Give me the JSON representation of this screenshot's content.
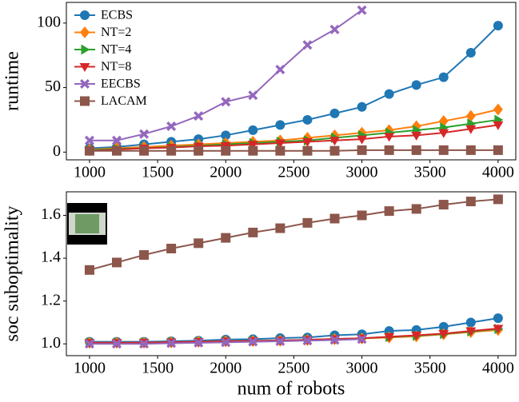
{
  "chart_data": [
    {
      "type": "line",
      "ylabel": "runtime",
      "legend": "upper left",
      "x": [
        1000,
        1200,
        1400,
        1600,
        1800,
        2000,
        2200,
        2400,
        2600,
        2800,
        3000,
        3200,
        3400,
        3600,
        3800,
        4000
      ],
      "xlim": [
        830,
        4130
      ],
      "xticks": [
        1000,
        1500,
        2000,
        2500,
        3000,
        3500,
        4000
      ],
      "ylim": [
        -6,
        116
      ],
      "yticks": [
        0,
        50,
        100
      ],
      "series": [
        {
          "name": "ECBS",
          "color": "#1f77b4",
          "marker": "circle",
          "values": [
            3,
            4,
            6,
            8,
            10,
            13,
            17,
            21,
            25,
            30,
            35,
            45,
            52,
            58,
            77,
            98
          ]
        },
        {
          "name": "NT=2",
          "color": "#ff7f0e",
          "marker": "diamond",
          "values": [
            2,
            3,
            4,
            5,
            6,
            7,
            8,
            9,
            11,
            13,
            15,
            17,
            20,
            24,
            28,
            33
          ]
        },
        {
          "name": "NT=4",
          "color": "#2ca02c",
          "marker": "triangle-right",
          "values": [
            1.5,
            2.5,
            3,
            4,
            5,
            6,
            7,
            8,
            9,
            11,
            13,
            15,
            17,
            19,
            22,
            25
          ]
        },
        {
          "name": "NT=8",
          "color": "#d62728",
          "marker": "triangle-down",
          "values": [
            1,
            2,
            3,
            3.5,
            4.5,
            5,
            6,
            7,
            8,
            9,
            10,
            12,
            13,
            15,
            18,
            21
          ]
        },
        {
          "name": "EECBS",
          "color": "#9467bd",
          "marker": "x",
          "values": [
            9,
            9,
            14,
            20,
            28,
            39,
            44,
            64,
            83,
            95,
            110,
            null,
            null,
            null,
            null,
            null
          ]
        },
        {
          "name": "LACAM",
          "color": "#8c564b",
          "marker": "square",
          "values": [
            1,
            1,
            1,
            1,
            1,
            1,
            1,
            1,
            1,
            1,
            1.5,
            1.5,
            1.5,
            1.5,
            1.5,
            1.5
          ]
        }
      ]
    },
    {
      "type": "line",
      "ylabel": "soc suboptimality",
      "xlabel": "num of robots",
      "x": [
        1000,
        1200,
        1400,
        1600,
        1800,
        2000,
        2200,
        2400,
        2600,
        2800,
        3000,
        3200,
        3400,
        3600,
        3800,
        4000
      ],
      "xlim": [
        830,
        4130
      ],
      "xticks": [
        1000,
        1500,
        2000,
        2500,
        3000,
        3500,
        4000
      ],
      "ylim": [
        0.945,
        1.71
      ],
      "yticks": [
        {
          "value": 1,
          "label": "1.0"
        },
        1.2,
        1.4,
        1.6
      ],
      "series": [
        {
          "color": "#1f77b4",
          "marker": "circle",
          "values": [
            1.01,
            1.01,
            1.01,
            1.012,
            1.015,
            1.02,
            1.022,
            1.027,
            1.03,
            1.04,
            1.045,
            1.06,
            1.065,
            1.08,
            1.1,
            1.12
          ]
        },
        {
          "color": "#ff7f0e",
          "marker": "diamond",
          "values": [
            1.005,
            1.005,
            1.005,
            1.007,
            1.01,
            1.012,
            1.013,
            1.015,
            1.018,
            1.022,
            1.025,
            1.03,
            1.035,
            1.045,
            1.055,
            1.065
          ]
        },
        {
          "color": "#2ca02c",
          "marker": "triangle-right",
          "values": [
            1.005,
            1.005,
            1.006,
            1.008,
            1.01,
            1.012,
            1.014,
            1.016,
            1.019,
            1.023,
            1.026,
            1.032,
            1.038,
            1.046,
            1.058,
            1.07
          ]
        },
        {
          "color": "#d62728",
          "marker": "triangle-down",
          "values": [
            1.005,
            1.005,
            1.006,
            1.008,
            1.01,
            1.012,
            1.014,
            1.016,
            1.019,
            1.023,
            1.026,
            1.033,
            1.04,
            1.048,
            1.06,
            1.072
          ]
        },
        {
          "color": "#9467bd",
          "marker": "x",
          "values": [
            1,
            1,
            1,
            1.003,
            1.005,
            1.007,
            1.01,
            1.012,
            1.015,
            1.018,
            1.022,
            null,
            null,
            null,
            null,
            null
          ]
        },
        {
          "color": "#8c564b",
          "marker": "square",
          "values": [
            1.345,
            1.38,
            1.415,
            1.445,
            1.47,
            1.495,
            1.52,
            1.54,
            1.565,
            1.585,
            1.6,
            1.62,
            1.63,
            1.65,
            1.665,
            1.675
          ]
        }
      ]
    }
  ]
}
